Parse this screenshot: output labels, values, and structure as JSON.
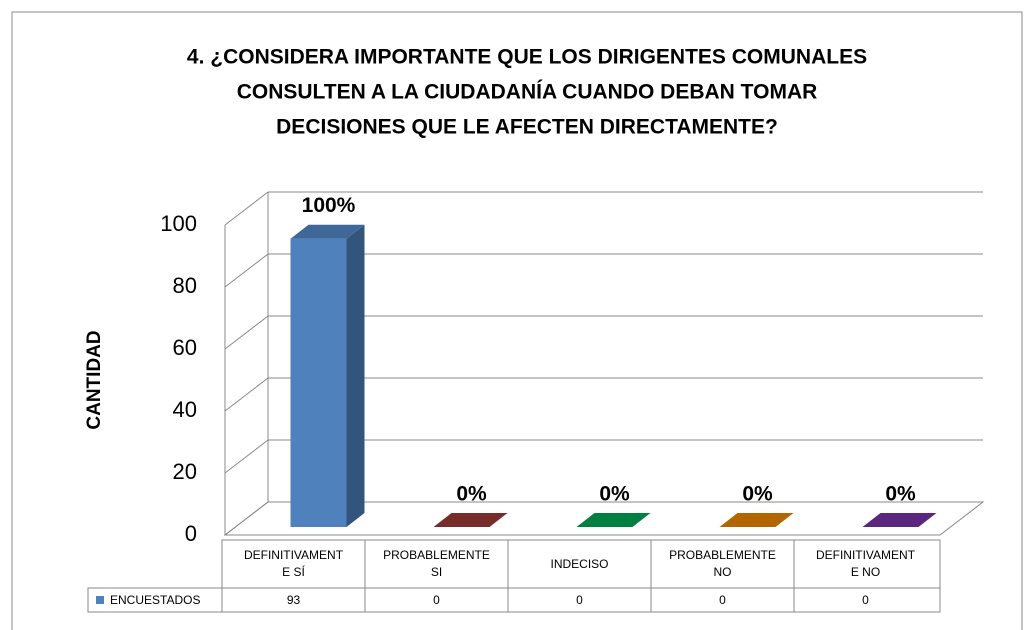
{
  "chart_data": {
    "type": "bar3d",
    "title": [
      "4. ¿CONSIDERA IMPORTANTE QUE LOS DIRIGENTES COMUNALES",
      "CONSULTEN A LA CIUDADANÍA CUANDO DEBAN TOMAR",
      "DECISIONES QUE LE AFECTEN DIRECTAMENTE?"
    ],
    "y_label": "CANTIDAD",
    "categories": [
      "DEFINITIVAMENTE SÍ",
      "PROBABLEMENTE SI",
      "INDECISO",
      "PROBABLEMENTE NO",
      "DEFINITIVAMENTE NO"
    ],
    "series": [
      {
        "name": "ENCUESTADOS",
        "color": "#4f81bd",
        "values": [
          93,
          0,
          0,
          0,
          0
        ],
        "value_labels": [
          "100%",
          "0%",
          "0%",
          "0%",
          "0%"
        ]
      }
    ],
    "bar_colors": [
      "#4f81bd",
      "#953735",
      "#00a050",
      "#e08000",
      "#7030a0"
    ],
    "ylim": [
      0,
      100
    ],
    "yticks": [
      0,
      20,
      40,
      60,
      80,
      100
    ],
    "grid": true,
    "data_table": true
  }
}
